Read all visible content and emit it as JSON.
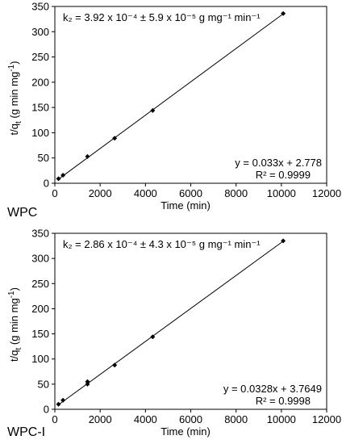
{
  "chart_data": [
    {
      "type": "scatter",
      "panel_label": "WPC",
      "title": "",
      "xlabel": "Time (min)",
      "ylabel": "t/q",
      "ylabel_sub": "t",
      "ylabel_tail": " (g min mg",
      "ylabel_sup": "-1",
      "ylabel_end": ")",
      "xlim": [
        0,
        12000
      ],
      "ylim": [
        0,
        350
      ],
      "xticks": [
        0,
        2000,
        4000,
        6000,
        8000,
        10000,
        12000
      ],
      "yticks": [
        0,
        50,
        100,
        150,
        200,
        250,
        300,
        350
      ],
      "grid": false,
      "x": [
        160,
        360,
        1440,
        2640,
        4320,
        10080
      ],
      "y": [
        9,
        16,
        53,
        89,
        144,
        336
      ],
      "trendline": {
        "slope": 0.033,
        "intercept": 2.778
      },
      "annotation_k": "k₂ = 3.92 x 10⁻⁴ ± 5.9 x 10⁻⁵ g mg⁻¹ min⁻¹",
      "equation": "y = 0.033x + 2.778",
      "r2": "R² = 0.9999"
    },
    {
      "type": "scatter",
      "panel_label": "WPC-I",
      "title": "",
      "xlabel": "Time (min)",
      "ylabel": "t/q",
      "ylabel_sub": "t",
      "ylabel_tail": " (g min mg",
      "ylabel_sup": "-1",
      "ylabel_end": ")",
      "xlim": [
        0,
        12000
      ],
      "ylim": [
        0,
        350
      ],
      "xticks": [
        0,
        2000,
        4000,
        6000,
        8000,
        10000,
        12000
      ],
      "yticks": [
        0,
        50,
        100,
        150,
        200,
        250,
        300,
        350
      ],
      "grid": false,
      "x": [
        160,
        360,
        1440,
        1440,
        2640,
        4320,
        10080
      ],
      "y": [
        10,
        18,
        50,
        55,
        88,
        144,
        335
      ],
      "trendline": {
        "slope": 0.0328,
        "intercept": 3.7649
      },
      "annotation_k": "k₂ = 2.86 x 10⁻⁴ ± 4.3 x 10⁻⁵ g mg⁻¹ min⁻¹",
      "equation": "y = 0.0328x + 3.7649",
      "r2": "R² = 0.9998"
    }
  ]
}
